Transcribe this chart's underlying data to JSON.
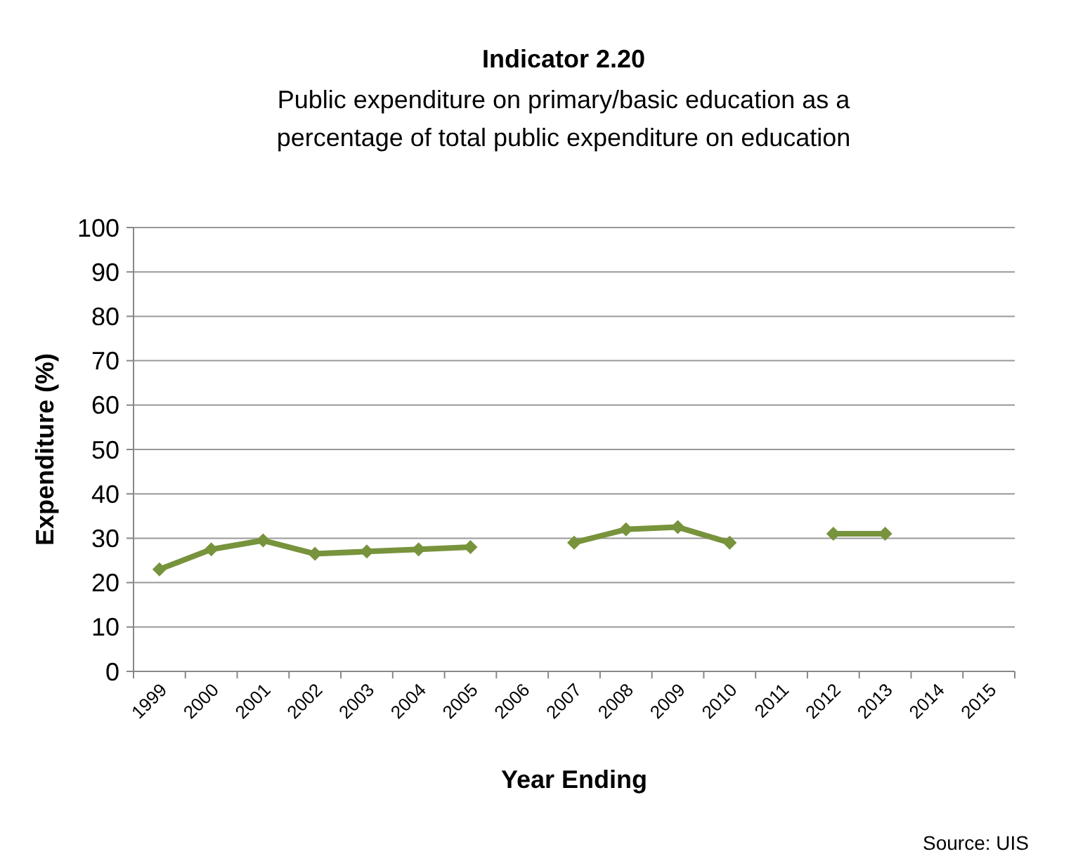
{
  "chart_data": {
    "type": "line",
    "title": "Indicator 2.20",
    "subtitle": "Public expenditure on primary/basic education as a percentage of total public expenditure on education",
    "xlabel": "Year Ending",
    "ylabel": "Expenditure (%)",
    "categories": [
      "1999",
      "2000",
      "2001",
      "2002",
      "2003",
      "2004",
      "2005",
      "2006",
      "2007",
      "2008",
      "2009",
      "2010",
      "2011",
      "2012",
      "2013",
      "2014",
      "2015"
    ],
    "series": [
      {
        "color": "#77933c",
        "values": [
          23,
          27.5,
          29.5,
          26.5,
          27,
          27.5,
          28,
          null,
          29,
          32,
          32.5,
          29,
          null,
          31,
          31,
          null,
          null
        ]
      }
    ],
    "ylim": [
      0,
      100
    ],
    "yticks": [
      0,
      10,
      20,
      30,
      40,
      50,
      60,
      70,
      80,
      90,
      100
    ],
    "grid": "y",
    "marker": "diamond",
    "line_style": "solid",
    "annotations": [
      "Source: UIS"
    ]
  }
}
